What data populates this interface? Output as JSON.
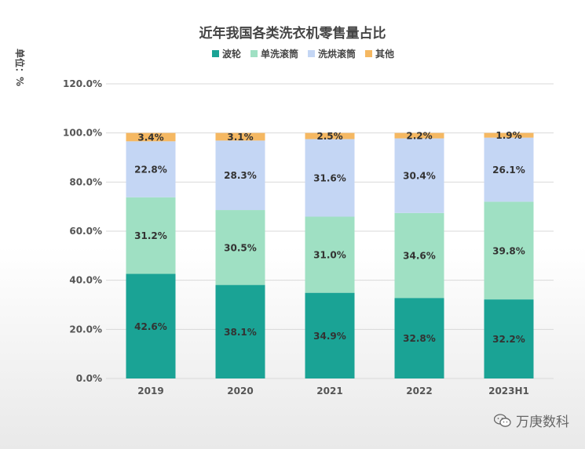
{
  "chart_data": {
    "type": "bar",
    "stacked": true,
    "title": "近年我国各类洗衣机零售量占比",
    "unit_label": "单位：%",
    "categories": [
      "2019",
      "2020",
      "2021",
      "2022",
      "2023H1"
    ],
    "series": [
      {
        "name": "波轮",
        "color": "#1aa395",
        "values": [
          42.6,
          38.1,
          34.9,
          32.8,
          32.2
        ],
        "labels": [
          "42.6%",
          "38.1%",
          "34.9%",
          "32.8%",
          "32.2%"
        ]
      },
      {
        "name": "单洗滚筒",
        "color": "#9fe0c3",
        "values": [
          31.2,
          30.5,
          31.0,
          34.6,
          39.8
        ],
        "labels": [
          "31.2%",
          "30.5%",
          "31.0%",
          "34.6%",
          "39.8%"
        ]
      },
      {
        "name": "洗烘滚筒",
        "color": "#c4d6f4",
        "values": [
          22.8,
          28.3,
          31.6,
          30.4,
          26.1
        ],
        "labels": [
          "22.8%",
          "28.3%",
          "31.6%",
          "30.4%",
          "26.1%"
        ]
      },
      {
        "name": "其他",
        "color": "#f5b862",
        "values": [
          3.4,
          3.1,
          2.5,
          2.2,
          1.9
        ],
        "labels": [
          "3.4%",
          "3.1%",
          "2.5%",
          "2.2%",
          "1.9%"
        ]
      }
    ],
    "ylim": [
      0,
      120
    ],
    "yticks": [
      "0.0%",
      "20.0%",
      "40.0%",
      "60.0%",
      "80.0%",
      "100.0%",
      "120.0%"
    ],
    "ytick_values": [
      0,
      20,
      40,
      60,
      80,
      100,
      120
    ],
    "grid": true,
    "legend_position": "top-center"
  },
  "watermark": {
    "text": "万庚数科",
    "icon": "wechat-icon"
  }
}
